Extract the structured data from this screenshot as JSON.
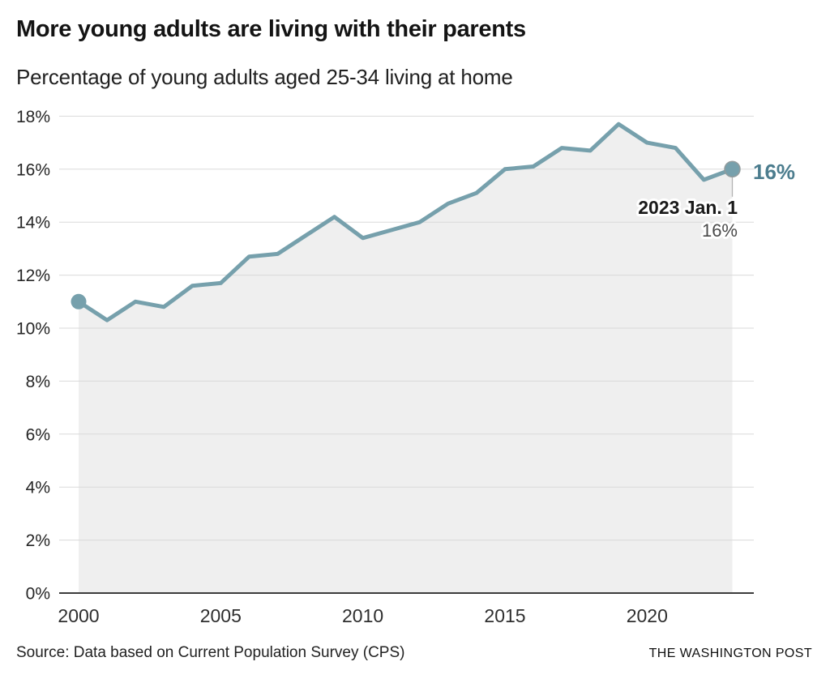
{
  "header": {
    "title": "More young adults are living with their parents",
    "subtitle": "Percentage of young adults aged 25-34 living at home"
  },
  "annotations": {
    "end_value_label": "16%",
    "callout_date": "2023 Jan. 1",
    "callout_value": "16%"
  },
  "footer": {
    "source": "Source: Data based on Current Population Survey (CPS)",
    "credit": "THE WASHINGTON POST"
  },
  "chart_data": {
    "type": "area",
    "title": "More young adults are living with their parents",
    "subtitle": "Percentage of young adults aged 25-34 living at home",
    "xlabel": "",
    "ylabel": "",
    "x": [
      2000,
      2001,
      2002,
      2003,
      2004,
      2005,
      2006,
      2007,
      2008,
      2009,
      2010,
      2011,
      2012,
      2013,
      2014,
      2015,
      2016,
      2017,
      2018,
      2019,
      2020,
      2021,
      2022,
      2023
    ],
    "values": [
      11.0,
      10.3,
      11.0,
      10.8,
      11.6,
      11.7,
      12.7,
      12.8,
      13.5,
      14.2,
      13.4,
      13.7,
      14.0,
      14.7,
      15.1,
      16.0,
      16.1,
      16.8,
      16.7,
      17.7,
      17.0,
      16.8,
      15.6,
      16.0
    ],
    "ylim": [
      0,
      18
    ],
    "yticks": [
      0,
      2,
      4,
      6,
      8,
      10,
      12,
      14,
      16,
      18
    ],
    "ytick_labels": [
      "0%",
      "2%",
      "4%",
      "6%",
      "8%",
      "10%",
      "12%",
      "14%",
      "16%",
      "18%"
    ],
    "xticks": [
      2000,
      2005,
      2010,
      2015,
      2020
    ],
    "xtick_labels": [
      "2000",
      "2005",
      "2010",
      "2015",
      "2020"
    ],
    "grid": true,
    "legend": false,
    "markers": {
      "start": {
        "x": 2000,
        "y": 11.0
      },
      "end": {
        "x": 2023,
        "y": 16.0
      }
    },
    "end_annotation": {
      "x": 2023,
      "y": 16.0,
      "value_label": "16%",
      "date_label": "2023 Jan. 1",
      "sub_value_label": "16%"
    },
    "colors": {
      "line": "#76A0AC",
      "marker": "#76A0AC",
      "marker_stroke": "#919B9D",
      "area_fill": "#EFEFEF",
      "grid": "#DADADA",
      "axis": "#3C3C3C",
      "connector": "#B3B3B3",
      "end_label": "#4C7D8E"
    }
  }
}
